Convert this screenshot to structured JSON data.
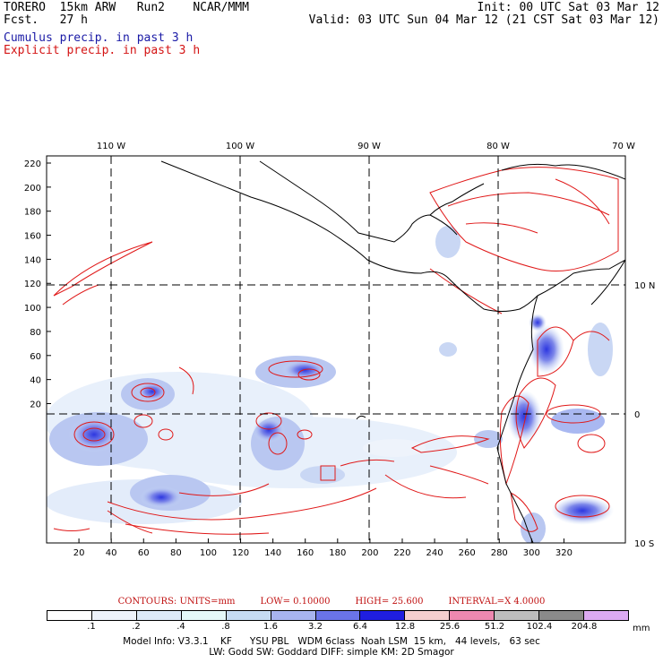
{
  "header": {
    "line1_left": "TORERO  15km ARW   Run2    NCAR/MMM",
    "line2_left": "Fcst.   27 h",
    "line1_right": "Init: 00 UTC Sat 03 Mar 12",
    "line2_right": "Valid: 03 UTC Sun 04 Mar 12 (21 CST Sat 03 Mar 12)",
    "cumulus": "Cumulus precip. in past 3 h",
    "explicit": "Explicit precip. in past 3 h"
  },
  "colors": {
    "cumulus": "#1a1aa6",
    "explicit": "#d41414",
    "coast": "#000000",
    "contour": "#e01818"
  },
  "map": {
    "x_ticks": [
      "20",
      "40",
      "60",
      "80",
      "100",
      "120",
      "140",
      "160",
      "180",
      "200",
      "220",
      "240",
      "260",
      "280",
      "300",
      "320"
    ],
    "y_ticks": [
      "220",
      "200",
      "180",
      "160",
      "140",
      "120",
      "100",
      "80",
      "60",
      "40",
      "20"
    ],
    "lon_labels": [
      "110 W",
      "100 W",
      "90 W",
      "80 W",
      "70 W"
    ],
    "lat_labels": [
      "10 N",
      "0",
      "10 S"
    ]
  },
  "contours": {
    "units": "CONTOURS:  UNITS=mm",
    "low": "LOW= 0.10000",
    "high": "HIGH=  25.600",
    "interval": "INTERVAL=X  4.0000"
  },
  "legend": {
    "levels": [
      ".1",
      ".2",
      ".4",
      ".8",
      "1.6",
      "3.2",
      "6.4",
      "12.8",
      "25.6",
      "51.2",
      "102.4",
      "204.8"
    ],
    "colors": [
      "#ffffff",
      "#eef3fb",
      "#ddeaf8",
      "#e4f8f8",
      "#c6dcf3",
      "#a8b4ef",
      "#6a74e8",
      "#1f1ee0",
      "#f5cfcf",
      "#ee88b0",
      "#bdbdbd",
      "#8a8a8a",
      "#dcaaf2"
    ],
    "unit": "mm"
  },
  "footer": {
    "line1": "Model Info: V3.3.1    KF      YSU PBL   WDM 6class  Noah LSM  15 km,   44 levels,   63 sec",
    "line2": "LW: Godd SW: Goddard DIFF: simple KM: 2D Smagor"
  }
}
